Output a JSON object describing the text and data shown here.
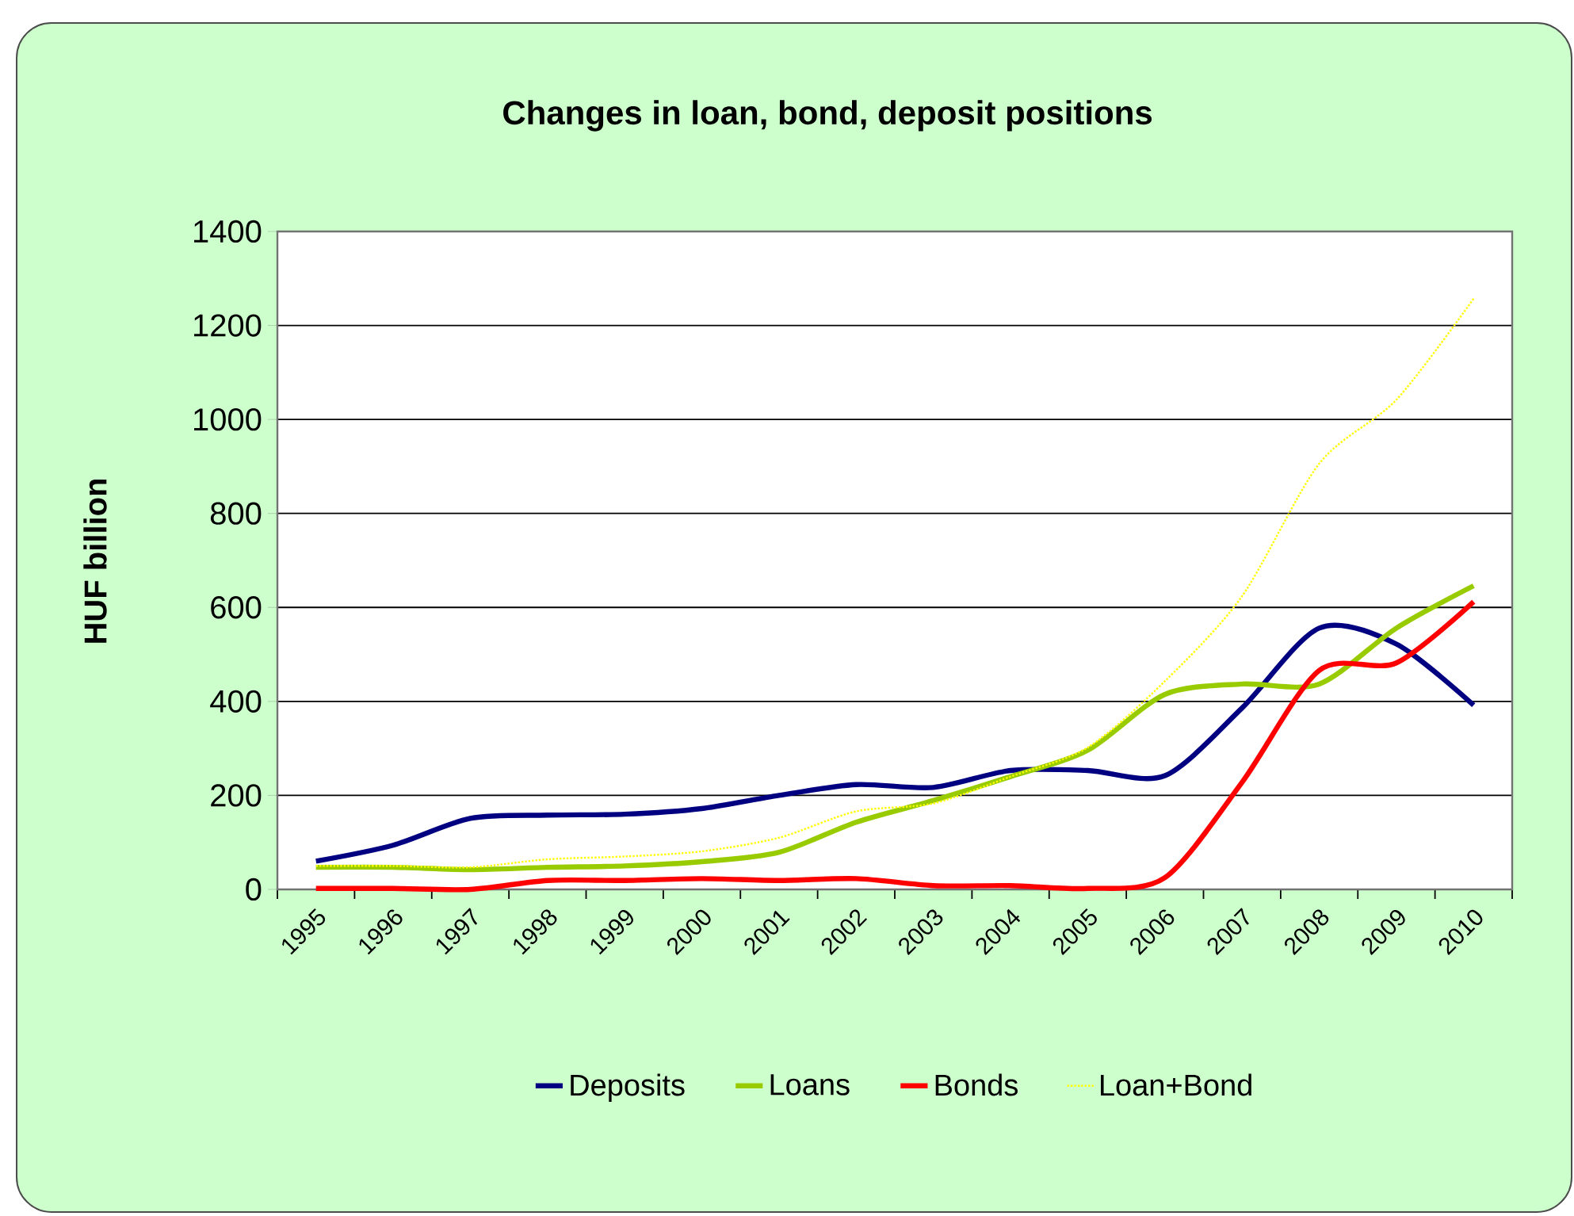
{
  "chart_data": {
    "type": "line",
    "title": "Changes in loan, bond, deposit positions",
    "ylabel": "HUF billion",
    "categories": [
      "1995",
      "1996",
      "1997",
      "1998",
      "1999",
      "2000",
      "2001",
      "2002",
      "2003",
      "2004",
      "2005",
      "2006",
      "2007",
      "2008",
      "2009",
      "2010"
    ],
    "series": [
      {
        "name": "Deposits",
        "color": "#000080",
        "values": [
          60,
          94,
          151,
          158,
          160,
          172,
          200,
          223,
          217,
          253,
          253,
          242,
          386,
          556,
          522,
          392
        ]
      },
      {
        "name": "Loans",
        "color": "#99CC00",
        "values": [
          47,
          47,
          42,
          47,
          50,
          59,
          79,
          143,
          189,
          240,
          296,
          415,
          437,
          437,
          556,
          646
        ]
      },
      {
        "name": "Bonds",
        "color": "#FF0000",
        "values": [
          2,
          2,
          0,
          19,
          19,
          23,
          19,
          23,
          8,
          8,
          2,
          25,
          228,
          466,
          482,
          612
        ]
      },
      {
        "name": "Loan+Bond",
        "color": "#FFFF00",
        "line_style": "dotted",
        "values": [
          50,
          50,
          47,
          64,
          70,
          81,
          110,
          166,
          183,
          240,
          302,
          443,
          624,
          906,
          1042,
          1257
        ]
      }
    ],
    "ylim": [
      0,
      1400
    ],
    "yticks": [
      0,
      200,
      400,
      600,
      800,
      1000,
      1200,
      1400
    ],
    "grid": "y",
    "legend": "bottom"
  }
}
